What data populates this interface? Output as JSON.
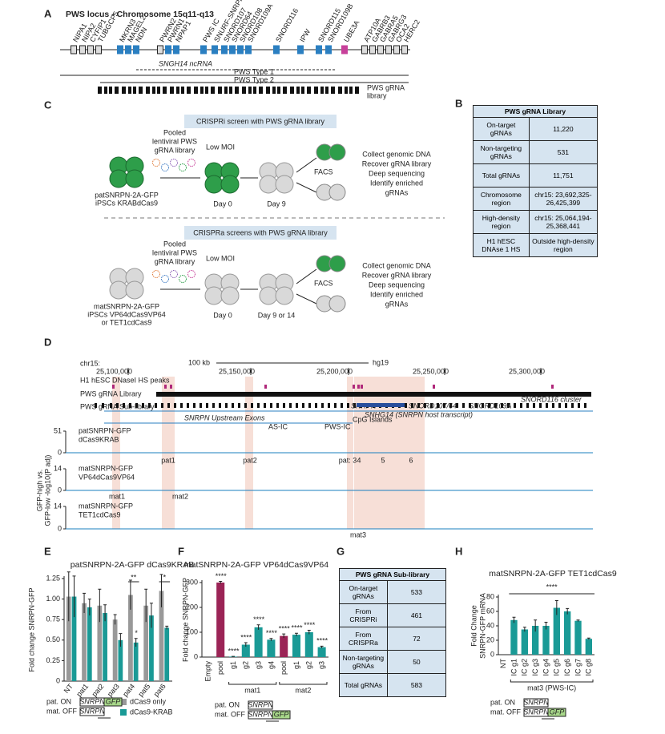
{
  "panel_a": {
    "letter": "A",
    "title": "PWS locus - Chromosome 15q11-q13",
    "genes": [
      {
        "name": "NIPA1",
        "color": "#222222"
      },
      {
        "name": "NIPA2",
        "color": "#222222"
      },
      {
        "name": "CYFIP1",
        "color": "#222222"
      },
      {
        "name": "TUBGCP5",
        "color": "#222222"
      },
      {
        "name": "MKRN3",
        "color": "#2a7fc1"
      },
      {
        "name": "MAGEL2",
        "color": "#2a7fc1"
      },
      {
        "name": "NDN",
        "color": "#2a7fc1"
      },
      {
        "name": "PWRN2",
        "color": "#222222"
      },
      {
        "name": "PWRN1",
        "color": "#2a7fc1"
      },
      {
        "name": "NPAP1",
        "color": "#2a7fc1"
      },
      {
        "name": "PWS IC",
        "color": "#2a7fc1"
      },
      {
        "name": "SNURF-SNRPN",
        "color": "#2a7fc1"
      },
      {
        "name": "SNORD107",
        "color": "#2a7fc1"
      },
      {
        "name": "SNORD64",
        "color": "#2a7fc1"
      },
      {
        "name": "SNORD108",
        "color": "#2a7fc1"
      },
      {
        "name": "SNORD109A",
        "color": "#2a7fc1"
      },
      {
        "name": "SNORD116",
        "color": "#2a7fc1"
      },
      {
        "name": "IPW",
        "color": "#2a7fc1"
      },
      {
        "name": "SNORD115",
        "color": "#2a7fc1"
      },
      {
        "name": "SNORD109B",
        "color": "#2a7fc1"
      },
      {
        "name": "UBE3A",
        "color": "#c7409a"
      },
      {
        "name": "ATP10A",
        "color": "#222222"
      },
      {
        "name": "GABRB3",
        "color": "#222222"
      },
      {
        "name": "GABRA5",
        "color": "#222222"
      },
      {
        "name": "GABRG3",
        "color": "#222222"
      },
      {
        "name": "OCA2",
        "color": "#222222"
      },
      {
        "name": "HERC2",
        "color": "#222222"
      }
    ],
    "ncrna": "SNGH14 ncRNA",
    "type1": "PWS Type 1",
    "type2": "PWS Type 2",
    "library": [
      "PWS gRNA",
      "library"
    ]
  },
  "panel_b": {
    "letter": "B",
    "header": "PWS gRNA Library",
    "rows": [
      [
        "On-target gRNAs",
        "11,220"
      ],
      [
        "Non-targeting gRNAs",
        "531"
      ],
      [
        "Total gRNAs",
        "11,751"
      ],
      [
        "Chromosome region",
        "chr15: 23,692,325-26,425,399"
      ],
      [
        "High-density region",
        "chr15: 25,064,194-25,368,441"
      ],
      [
        "H1 hESC DNAse 1 HS",
        "Outside high-density region"
      ]
    ]
  },
  "panel_c": {
    "letter": "C",
    "screens": [
      {
        "title": "CRISPRi screen with PWS gRNA library",
        "pooled": [
          "Pooled",
          "lentiviral PWS",
          "gRNA library"
        ],
        "moi": "Low MOI",
        "day0": "Day 0",
        "day_later": "Day 9",
        "facs": "FACS",
        "steps": [
          "Collect genomic DNA",
          "Recover gRNA library",
          "Deep sequencing",
          "Identify enriched",
          "gRNAs"
        ],
        "cells": [
          "patSNRPN-2A-GFP",
          "iPSCs KRABdCas9"
        ]
      },
      {
        "title": "CRISPRa screens with PWS gRNA library",
        "pooled": [
          "Pooled",
          "lentiviral PWS",
          "gRNA library"
        ],
        "moi": "Low MOI",
        "day0": "Day 0",
        "day_later": "Day 9 or 14",
        "facs": "FACS",
        "steps": [
          "Collect genomic DNA",
          "Recover gRNA library",
          "Deep sequencing",
          "Identify enriched",
          "gRNAs"
        ],
        "cells": [
          "matSNRPN-2A-GFP",
          "iPSCs VP64dCas9VP64",
          "or TET1cdCas9"
        ]
      }
    ]
  },
  "panel_d": {
    "letter": "D",
    "chrom": "chr15:",
    "scale": "100 kb",
    "assembly": "hg19",
    "coords": [
      "25,100,000",
      "25,150,000",
      "25,200,000",
      "25,250,000",
      "25,300,000"
    ],
    "tracks": [
      "H1 hESC DNaseI HS peaks",
      "PWS gRNA Library",
      "PWS gRNA Sub-library"
    ],
    "features": [
      "SNRPN Upstream Exons",
      "SNRPN",
      "SNHG14 (SNRPN host transcript)",
      "SNORD107/64",
      "SNORD109A",
      "SNORD116 cluster",
      "CpG Islands",
      "AS-IC",
      "PWS-IC"
    ],
    "ylabel": [
      "GFP-high vs.",
      "GFP-low -log10(P adj)"
    ],
    "screens": [
      {
        "name": [
          "patSNRPN-GFP",
          "dCas9KRAB"
        ],
        "yticks": [
          0,
          51
        ],
        "peaks": [
          "pat1",
          "pat2",
          "pat: 3",
          "4",
          "5",
          "6"
        ]
      },
      {
        "name": [
          "matSNRPN-GFP",
          "VP64dCas9VP64"
        ],
        "yticks": [
          0,
          14
        ],
        "peaks": [
          "mat1",
          "mat2"
        ]
      },
      {
        "name": [
          "matSNRPN-GFP",
          "TET1cdCas9"
        ],
        "yticks": [
          0,
          14
        ],
        "peaks": [
          "mat3"
        ]
      }
    ]
  },
  "chart_data": [
    {
      "type": "bar",
      "letter": "E",
      "title": "patSNRPN-2A-GFP dCas9KRAB",
      "ylabel": "Fold change SNRPN-GFP",
      "categories": [
        "NT",
        "pat1",
        "pat2",
        "pat3",
        "pat4",
        "pat5",
        "pat6"
      ],
      "series": [
        {
          "name": "dCas9 only",
          "color": "#999999",
          "values": [
            1.03,
            0.95,
            0.92,
            0.75,
            1.05,
            0.92,
            1.1
          ],
          "errors": [
            0.3,
            0.12,
            0.2,
            0.06,
            0.18,
            0.2,
            0.2
          ],
          "markers": [
            null,
            null,
            null,
            null,
            null,
            null,
            null
          ]
        },
        {
          "name": "dCas9-KRAB",
          "color": "#1a9a96",
          "values": [
            1.03,
            0.9,
            0.83,
            0.5,
            0.47,
            0.8,
            0.65
          ],
          "errors": [
            0.25,
            0.1,
            0.1,
            0.08,
            0.05,
            0.15,
            0.02
          ],
          "markers": [
            null,
            null,
            null,
            null,
            "*",
            null,
            null
          ]
        }
      ],
      "significance": [
        null,
        null,
        null,
        null,
        "**",
        null,
        "*"
      ],
      "ylim": [
        0,
        1.25
      ],
      "yticks": [
        0,
        0.25,
        {
          "value": 0.5,
          "label": "0.50"
        },
        0.75,
        {
          "value": 1,
          "label": "1.00"
        },
        1.25
      ]
    },
    {
      "type": "bar",
      "letter": "F",
      "title": "matSNRPN-2A-GFP VP64dCas9VP64",
      "ylabel": "Fold change SNRPN-GFP",
      "categories": [
        "Empty",
        "pool",
        "g1",
        "g2",
        "g3",
        "g4",
        "pool",
        "g1",
        "g2",
        "g3"
      ],
      "values": [
        0,
        300,
        2,
        50,
        120,
        70,
        85,
        90,
        100,
        40
      ],
      "errors": [
        0,
        5,
        1,
        8,
        10,
        5,
        8,
        6,
        8,
        4
      ],
      "colors": [
        "#1a9a96",
        "#9b2456",
        "#1a9a96",
        "#1a9a96",
        "#1a9a96",
        "#1a9a96",
        "#9b2456",
        "#1a9a96",
        "#1a9a96",
        "#1a9a96"
      ],
      "significance": [
        null,
        "****",
        "****",
        "****",
        "****",
        "****",
        "****",
        "****",
        "****",
        "****"
      ],
      "groups": [
        {
          "label": "mat1",
          "from": 2,
          "to": 5
        },
        {
          "label": "mat2",
          "from": 6,
          "to": 9
        }
      ],
      "ylim": [
        0,
        300
      ],
      "yticks": [
        0,
        100,
        200,
        300
      ]
    },
    {
      "type": "bar",
      "letter": "H",
      "title": "matSNRPN-2A-GFP TET1cdCas9",
      "ylabel": [
        "Fold Change",
        "SNRPN-GFP mRNA"
      ],
      "categories": [
        "NT",
        "IC g1",
        "IC g2",
        "IC g3",
        "IC g4",
        "IC g5",
        "IC g6",
        "IC g7",
        "IC g8"
      ],
      "values": [
        0,
        48,
        35,
        40,
        40,
        65,
        60,
        47,
        22
      ],
      "errors": [
        0,
        4,
        3,
        8,
        5,
        10,
        4,
        1,
        1
      ],
      "color": "#1a9a96",
      "significance": "****",
      "groups": [
        {
          "label": "mat3 (PWS-IC)",
          "from": 1,
          "to": 8
        }
      ],
      "ylim": [
        0,
        80
      ],
      "yticks": [
        0,
        20,
        40,
        60,
        80
      ]
    }
  ],
  "panel_g": {
    "letter": "G",
    "header": "PWS gRNA Sub-library",
    "rows": [
      [
        "On-target gRNAs",
        "533"
      ],
      [
        "From CRISPRi",
        "461"
      ],
      [
        "From CRISPRa",
        "72"
      ],
      [
        "Non-targeting gRNAs",
        "50"
      ],
      [
        "Total gRNAs",
        "583"
      ]
    ]
  },
  "schematics": [
    {
      "on": "pat. ON",
      "off": "mat. OFF",
      "gene_on": "SNRPN",
      "gene_off": "SNRPN",
      "reporter": "GFP"
    },
    {
      "on": "pat. ON",
      "off": "mat. OFF",
      "gene_on": "SNRPN",
      "gene_off": "SNRPN",
      "reporter": "GFP"
    },
    {
      "on": "pat. ON",
      "off": "mat. OFF",
      "gene_on": "SNRPN",
      "gene_off": "SNRPN",
      "reporter": "GFP"
    }
  ]
}
